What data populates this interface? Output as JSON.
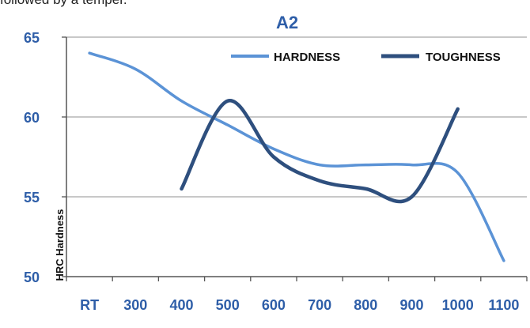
{
  "caption_fragment": "followed by a temper.",
  "chart_data": {
    "type": "line",
    "title": "A2",
    "xlabel": "",
    "ylabel": "HRC Hardness",
    "categories": [
      "RT",
      "300",
      "400",
      "500",
      "600",
      "700",
      "800",
      "900",
      "1000",
      "1100"
    ],
    "ylim": [
      50,
      65
    ],
    "yticks": [
      50,
      55,
      60,
      65
    ],
    "grid": true,
    "legend_position": "top-right",
    "series": [
      {
        "name": "HARDNESS",
        "color": "#5b93d6",
        "values": [
          64,
          63,
          61,
          59.5,
          58,
          57,
          57,
          57,
          56.5,
          51
        ]
      },
      {
        "name": "TOUGHNESS",
        "color": "#2e4f7e",
        "values": [
          null,
          null,
          55.5,
          61,
          57.5,
          56,
          55.5,
          55,
          60.5,
          null
        ]
      }
    ],
    "colors": {
      "title": "#2e5ea8",
      "tick_labels": "#2e5ea8",
      "gridline": "#a6a6a6",
      "axis": "#555555"
    }
  }
}
